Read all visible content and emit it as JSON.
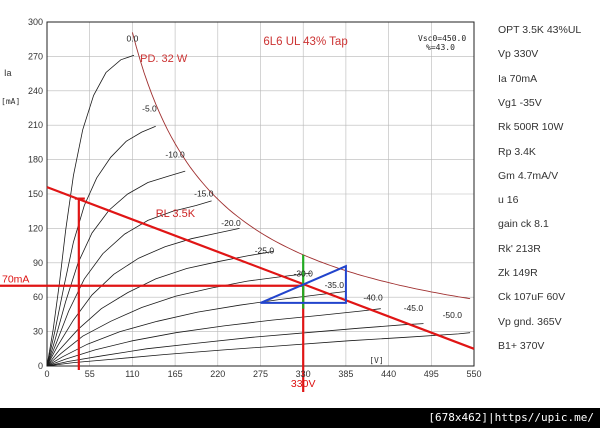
{
  "chart_data": {
    "type": "line",
    "title": "6L6 UL 43% Tap",
    "ylabel": "Ia",
    "yunit": "[mA]",
    "xunit": "[V]",
    "xlim": [
      0,
      550
    ],
    "ylim": [
      0,
      300
    ],
    "x_ticks": [
      "0",
      "55",
      "110",
      "165",
      "220",
      "275",
      "330",
      "385",
      "440",
      "495",
      "550"
    ],
    "y_ticks": [
      "0",
      "30",
      "60",
      "90",
      "120",
      "150",
      "180",
      "210",
      "240",
      "270",
      "300"
    ],
    "grid": true,
    "info_box": [
      "Vsc0=450.0",
      "%=43.0"
    ],
    "plate_curves": [
      {
        "vg_label": "0.0",
        "label_at": [
          110,
          283
        ],
        "points": [
          [
            0,
            0
          ],
          [
            8,
            32
          ],
          [
            16,
            72
          ],
          [
            24,
            118
          ],
          [
            34,
            166
          ],
          [
            46,
            206
          ],
          [
            60,
            236
          ],
          [
            76,
            256
          ],
          [
            95,
            267
          ],
          [
            112,
            271
          ]
        ]
      },
      {
        "vg_label": "-5.0",
        "label_at": [
          132,
          222
        ],
        "points": [
          [
            0,
            0
          ],
          [
            10,
            30
          ],
          [
            22,
            70
          ],
          [
            34,
            108
          ],
          [
            48,
            140
          ],
          [
            64,
            164
          ],
          [
            82,
            182
          ],
          [
            102,
            196
          ],
          [
            122,
            204
          ],
          [
            140,
            209
          ]
        ]
      },
      {
        "vg_label": "-10.0",
        "label_at": [
          165,
          182
        ],
        "points": [
          [
            0,
            0
          ],
          [
            10,
            22
          ],
          [
            24,
            56
          ],
          [
            40,
            90
          ],
          [
            58,
            116
          ],
          [
            80,
            136
          ],
          [
            104,
            150
          ],
          [
            130,
            160
          ],
          [
            158,
            166
          ],
          [
            178,
            170
          ]
        ]
      },
      {
        "vg_label": "-15.0",
        "label_at": [
          202,
          148
        ],
        "points": [
          [
            0,
            0
          ],
          [
            12,
            20
          ],
          [
            28,
            48
          ],
          [
            48,
            76
          ],
          [
            72,
            98
          ],
          [
            100,
            115
          ],
          [
            130,
            127
          ],
          [
            162,
            135
          ],
          [
            192,
            140
          ],
          [
            212,
            144
          ]
        ]
      },
      {
        "vg_label": "-20.0",
        "label_at": [
          237,
          122
        ],
        "points": [
          [
            0,
            0
          ],
          [
            14,
            18
          ],
          [
            34,
            40
          ],
          [
            58,
            62
          ],
          [
            86,
            80
          ],
          [
            118,
            94
          ],
          [
            152,
            104
          ],
          [
            186,
            111
          ],
          [
            220,
            116
          ],
          [
            248,
            120
          ]
        ]
      },
      {
        "vg_label": "-25.0",
        "label_at": [
          280,
          98
        ],
        "points": [
          [
            0,
            0
          ],
          [
            16,
            14
          ],
          [
            40,
            32
          ],
          [
            70,
            50
          ],
          [
            104,
            64
          ],
          [
            140,
            76
          ],
          [
            180,
            85
          ],
          [
            220,
            91
          ],
          [
            258,
            96
          ],
          [
            292,
            100
          ]
        ]
      },
      {
        "vg_label": "-30.0",
        "label_at": [
          330,
          78
        ],
        "points": [
          [
            0,
            0
          ],
          [
            18,
            11
          ],
          [
            46,
            26
          ],
          [
            82,
            39
          ],
          [
            122,
            51
          ],
          [
            166,
            61
          ],
          [
            212,
            68
          ],
          [
            258,
            74
          ],
          [
            302,
            78
          ],
          [
            340,
            81
          ]
        ]
      },
      {
        "vg_label": "-35.0",
        "label_at": [
          370,
          68
        ],
        "points": [
          [
            0,
            0
          ],
          [
            20,
            8
          ],
          [
            52,
            19
          ],
          [
            94,
            30
          ],
          [
            142,
            39
          ],
          [
            194,
            47
          ],
          [
            248,
            53
          ],
          [
            300,
            58
          ],
          [
            348,
            62
          ],
          [
            385,
            65
          ]
        ]
      },
      {
        "vg_label": "-40.0",
        "label_at": [
          420,
          57
        ],
        "points": [
          [
            0,
            0
          ],
          [
            24,
            6
          ],
          [
            62,
            14
          ],
          [
            110,
            22
          ],
          [
            166,
            29
          ],
          [
            228,
            35
          ],
          [
            290,
            40
          ],
          [
            350,
            44
          ],
          [
            405,
            48
          ],
          [
            430,
            50
          ]
        ]
      },
      {
        "vg_label": "-45.0",
        "label_at": [
          472,
          48
        ],
        "points": [
          [
            0,
            0
          ],
          [
            28,
            4
          ],
          [
            72,
            9
          ],
          [
            128,
            15
          ],
          [
            194,
            20
          ],
          [
            264,
            25
          ],
          [
            334,
            29
          ],
          [
            402,
            33
          ],
          [
            460,
            36
          ],
          [
            485,
            37
          ]
        ]
      },
      {
        "vg_label": "-50.0",
        "label_at": [
          522,
          42
        ],
        "points": [
          [
            0,
            0
          ],
          [
            34,
            3
          ],
          [
            86,
            6
          ],
          [
            152,
            10
          ],
          [
            228,
            14
          ],
          [
            308,
            18
          ],
          [
            388,
            22
          ],
          [
            462,
            25
          ],
          [
            530,
            28
          ],
          [
            545,
            29
          ]
        ]
      }
    ],
    "dissipation_curve": {
      "label": "PD. 32 W",
      "label_at": [
        120,
        265
      ],
      "watts": 32,
      "x_from": 110,
      "x_to": 545
    },
    "load_line": {
      "label": "RL 3.5K",
      "label_at": [
        140,
        130
      ],
      "points": [
        [
          0,
          156
        ],
        [
          550,
          15
        ]
      ]
    },
    "operating_point": {
      "vp": 330,
      "ia": 70,
      "vp_label": "330V",
      "ia_label": "70mA"
    },
    "left_marker": {
      "x": 41,
      "y": 146
    },
    "green_line": {
      "x": 330,
      "y1": 50,
      "y2": 97
    },
    "blue_triangle": [
      [
        275,
        55
      ],
      [
        385,
        55
      ],
      [
        385,
        87
      ]
    ]
  },
  "side_params": [
    "OPT 3.5K 43%UL",
    "Vp 330V",
    "Ia 70mA",
    "Vg1 -35V",
    "Rk 500R 10W",
    "Rp 3.4K",
    "Gm 4.7mA/V",
    "u 16",
    "gain ck 8.1",
    "Rk' 213R",
    "Zk 149R",
    "Ck 107uF 60V",
    "Vp gnd. 365V",
    "B1+ 370V"
  ],
  "footer": "[678x462]|https//upic.me/"
}
